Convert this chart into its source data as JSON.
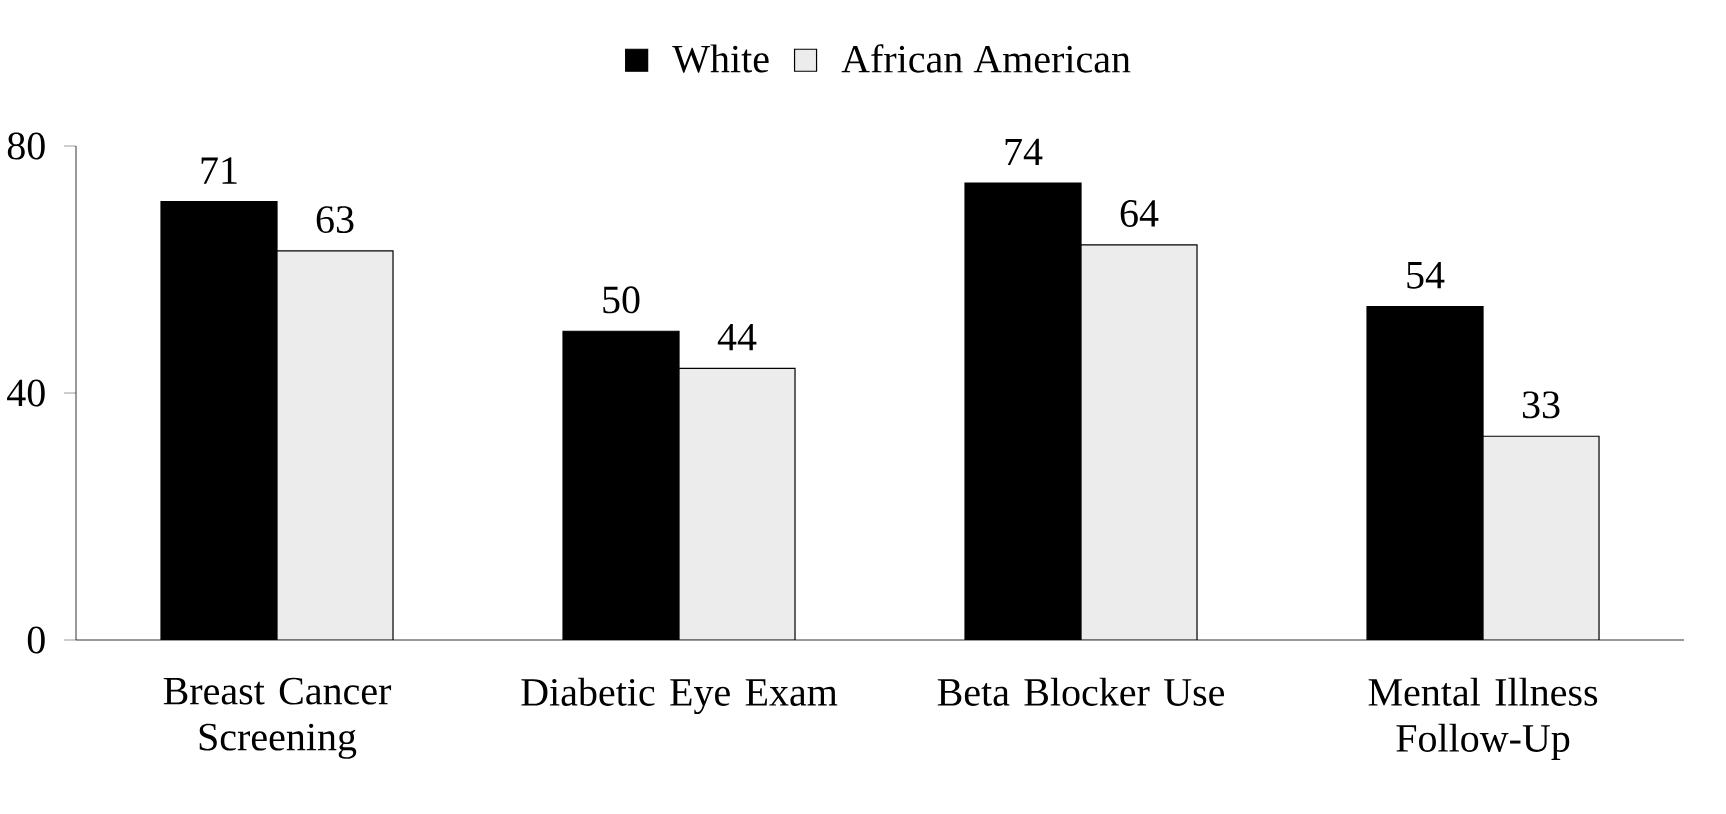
{
  "chart_data": {
    "type": "bar",
    "categories": [
      "Breast Cancer Screening",
      "Diabetic Eye Exam",
      "Beta Blocker Use",
      "Mental Illness Follow-Up"
    ],
    "series": [
      {
        "name": "White",
        "color": "#000000",
        "values": [
          71,
          50,
          74,
          54
        ]
      },
      {
        "name": "African American",
        "color": "#ececec",
        "values": [
          63,
          44,
          64,
          33
        ]
      }
    ],
    "ylim": [
      0,
      80
    ],
    "yticks": [
      0,
      40,
      80
    ],
    "data_labels": true,
    "legend": "top",
    "grid": false
  }
}
